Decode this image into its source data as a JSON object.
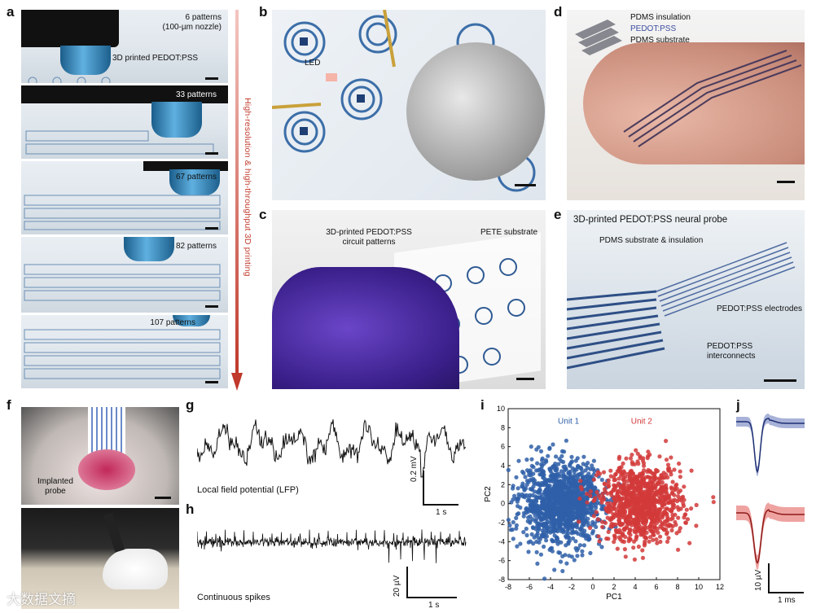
{
  "labels": {
    "a": "a",
    "b": "b",
    "c": "c",
    "d": "d",
    "e": "e",
    "f": "f",
    "g": "g",
    "h": "h",
    "i": "i",
    "j": "j"
  },
  "panel_a": {
    "frames": [
      {
        "count": "6 patterns",
        "extra": "(100-µm nozzle)",
        "annotation": "3D printed PEDOT:PSS"
      },
      {
        "count": "33 patterns"
      },
      {
        "count": "67 patterns"
      },
      {
        "count": "82 patterns"
      },
      {
        "count": "107 patterns"
      }
    ],
    "arrow_label": "High-resolution & high-throughput 3D printing",
    "arrow_color": "#c0392b"
  },
  "panel_b": {
    "led_label": "LED"
  },
  "panel_c": {
    "pattern_label_1": "3D-printed PEDOT:PSS",
    "pattern_label_2": "circuit patterns",
    "substrate_label": "PETE substrate"
  },
  "panel_d": {
    "layer1": "PDMS insulation",
    "layer2": "PEDOT:PSS",
    "layer3": "PDMS substrate",
    "layer2_color": "#3b4fa0"
  },
  "panel_e": {
    "title": "3D-printed PEDOT:PSS neural probe",
    "substrate": "PDMS substrate & insulation",
    "electrodes": "PEDOT:PSS electrodes",
    "interconnects_1": "PEDOT:PSS",
    "interconnects_2": "interconnects"
  },
  "panel_f": {
    "probe_1": "Implanted",
    "probe_2": "probe"
  },
  "panel_g": {
    "caption": "Local field potential (LFP)",
    "scale_y": "0.2 mV",
    "scale_x": "1 s"
  },
  "panel_h": {
    "caption": "Continuous spikes",
    "scale_y": "20 µV",
    "scale_x": "1 s"
  },
  "panel_j": {
    "scale_y": "10 µV",
    "scale_x": "1 ms",
    "unit1_color": "#3f55a8",
    "unit2_color": "#d9322f"
  },
  "watermark": "大数据文摘",
  "chart_data": {
    "type": "scatter",
    "title": "",
    "xlabel": "PC1",
    "ylabel": "PC2",
    "xlim": [
      -8,
      12
    ],
    "ylim": [
      -8,
      10
    ],
    "xticks": [
      -8,
      -6,
      -4,
      -2,
      0,
      2,
      4,
      6,
      8,
      10,
      12
    ],
    "yticks": [
      -8,
      -6,
      -4,
      -2,
      0,
      2,
      4,
      6,
      8,
      10
    ],
    "series": [
      {
        "name": "Unit 1",
        "color": "#2f5fa8",
        "center": [
          -3,
          0
        ],
        "spread": [
          1.9,
          2.1
        ],
        "n": 1300
      },
      {
        "name": "Unit 2",
        "color": "#d23a3a",
        "center": [
          4.6,
          0
        ],
        "spread": [
          1.9,
          2.0
        ],
        "n": 1000
      }
    ]
  }
}
